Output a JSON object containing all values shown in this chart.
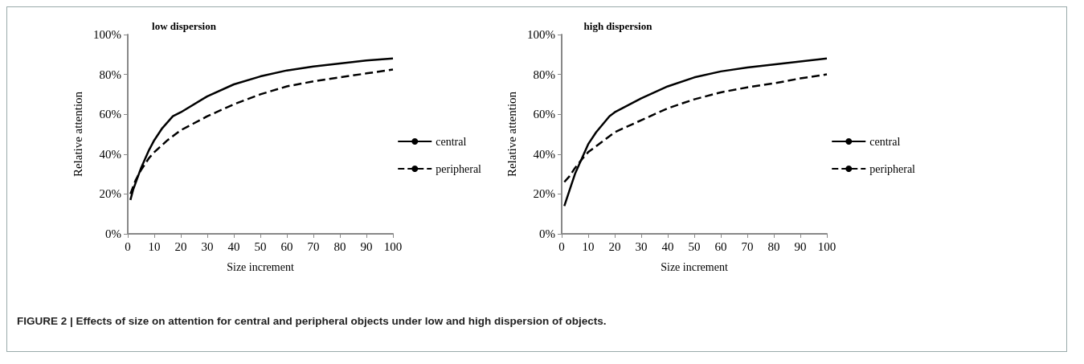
{
  "chart_data": [
    {
      "type": "line",
      "title": "low dispersion",
      "xlabel": "Size increment",
      "ylabel": "Relative attention",
      "xlim": [
        0,
        100
      ],
      "xticks": [
        0,
        10,
        20,
        30,
        40,
        50,
        60,
        70,
        80,
        90,
        100
      ],
      "ylim": [
        0,
        100
      ],
      "yticks": [
        {
          "value": 0,
          "label": "0%"
        },
        {
          "value": 20,
          "label": "20%"
        },
        {
          "value": 40,
          "label": "40%"
        },
        {
          "value": 60,
          "label": "60%"
        },
        {
          "value": 80,
          "label": "80%"
        },
        {
          "value": 100,
          "label": "100%"
        }
      ],
      "legend": "right",
      "grid": false,
      "marker": "none",
      "series": [
        {
          "name": "central",
          "color": "#000000",
          "line_style": "solid",
          "x": [
            1,
            2,
            5,
            8,
            10,
            13,
            17,
            20,
            30,
            40,
            50,
            60,
            70,
            80,
            90,
            100
          ],
          "values": [
            17,
            22,
            33,
            42,
            47,
            53,
            59,
            61,
            69,
            75,
            79,
            82,
            84,
            85.5,
            87,
            88
          ]
        },
        {
          "name": "peripheral",
          "color": "#000000",
          "line_style": "dashed",
          "x": [
            1,
            3,
            5,
            8,
            10,
            15,
            20,
            30,
            40,
            50,
            60,
            70,
            80,
            90,
            100
          ],
          "values": [
            20,
            27,
            32,
            38,
            41,
            47,
            52,
            59,
            65,
            70,
            74,
            76.5,
            78.5,
            80.5,
            82.5
          ]
        }
      ],
      "annotations": [
        "FIGURE 2 | Effects of size on attention for central and peripheral objects under low and high dispersion of objects."
      ]
    },
    {
      "type": "line",
      "title": "high dispersion",
      "xlabel": "Size increment",
      "ylabel": "Relative attention",
      "xlim": [
        0,
        100
      ],
      "xticks": [
        0,
        10,
        20,
        30,
        40,
        50,
        60,
        70,
        80,
        90,
        100
      ],
      "ylim": [
        0,
        100
      ],
      "yticks": [
        {
          "value": 0,
          "label": "0%"
        },
        {
          "value": 20,
          "label": "20%"
        },
        {
          "value": 40,
          "label": "40%"
        },
        {
          "value": 60,
          "label": "60%"
        },
        {
          "value": 80,
          "label": "80%"
        },
        {
          "value": 100,
          "label": "100%"
        }
      ],
      "legend": "right",
      "grid": false,
      "marker": "none",
      "series": [
        {
          "name": "central",
          "color": "#000000",
          "line_style": "solid",
          "x": [
            1,
            3,
            5,
            8,
            10,
            13,
            18,
            20,
            30,
            40,
            50,
            60,
            70,
            80,
            90,
            100
          ],
          "values": [
            14,
            22,
            30,
            39,
            45,
            51,
            59,
            61,
            68,
            74,
            78.5,
            81.5,
            83.5,
            85,
            86.5,
            88
          ]
        },
        {
          "name": "peripheral",
          "color": "#000000",
          "line_style": "dashed",
          "x": [
            1,
            3,
            5,
            8,
            10,
            15,
            20,
            30,
            40,
            50,
            60,
            70,
            80,
            90,
            100
          ],
          "values": [
            26,
            29,
            33,
            38,
            41,
            46,
            51,
            57,
            63,
            67.5,
            71,
            73.5,
            75.5,
            78,
            80
          ]
        }
      ]
    }
  ]
}
